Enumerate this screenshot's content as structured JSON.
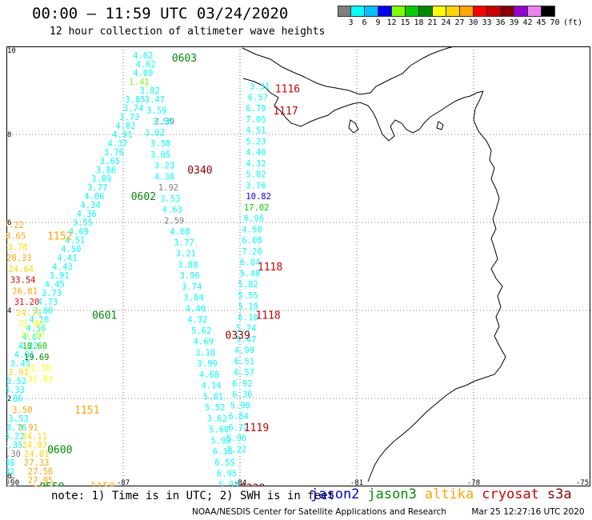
{
  "title": "00:00 – 11:59 UTC 03/24/2020",
  "subtitle": "12 hour collection of altimeter wave heights",
  "color_scale": {
    "unit": "(ft)",
    "labels": [
      "3",
      "6",
      "9",
      "12",
      "15",
      "18",
      "21",
      "24",
      "27",
      "30",
      "33",
      "36",
      "39",
      "42",
      "45",
      "70"
    ],
    "colors": [
      "#7f7f7f",
      "#00ffff",
      "#00bfff",
      "#0000ff",
      "#7fff00",
      "#00cd00",
      "#008b00",
      "#ffff00",
      "#ffd700",
      "#ffa500",
      "#ff0000",
      "#cd0000",
      "#8b0000",
      "#9400d3",
      "#ee82ee",
      "#000000"
    ]
  },
  "map": {
    "lon_range": [
      -90,
      -75
    ],
    "lat_range": [
      0,
      10
    ],
    "x_ticks": [
      "-90",
      "-87",
      "-84",
      "-81",
      "-78",
      "-75"
    ],
    "y_ticks": [
      "10",
      "8",
      "6",
      "4",
      "2",
      "0"
    ]
  },
  "satellites": [
    {
      "name": "jason2",
      "color": "#0000cd"
    },
    {
      "name": "jason3",
      "color": "#008b00"
    },
    {
      "name": "altika",
      "color": "#ffa500"
    },
    {
      "name": "cryosat",
      "color": "#cd0000"
    },
    {
      "name": "s3a",
      "color": "#8b0000"
    }
  ],
  "time_labels": [
    {
      "text": "0603",
      "color": "#008b00",
      "lon": -85.75,
      "lat": 9.75
    },
    {
      "text": "0602",
      "color": "#008b00",
      "lon": -86.8,
      "lat": 6.6
    },
    {
      "text": "0601",
      "color": "#008b00",
      "lon": -87.8,
      "lat": 3.9
    },
    {
      "text": "0600",
      "color": "#008b00",
      "lon": -88.95,
      "lat": 0.85
    },
    {
      "text": "0559",
      "color": "#008b00",
      "lon": -89.15,
      "lat": 0.0
    },
    {
      "text": "1152",
      "color": "#ffa500",
      "lon": -88.95,
      "lat": 5.7
    },
    {
      "text": "1151",
      "color": "#ffa500",
      "lon": -88.25,
      "lat": 1.75
    },
    {
      "text": "1150",
      "color": "#ffa500",
      "lon": -87.85,
      "lat": 0.0
    },
    {
      "text": "0340",
      "color": "#8b0000",
      "lon": -85.35,
      "lat": 7.2
    },
    {
      "text": "0339",
      "color": "#8b0000",
      "lon": -84.38,
      "lat": 3.45
    },
    {
      "text": "0338",
      "color": "#8b0000",
      "lon": -84.0,
      "lat": -0.03
    },
    {
      "text": "1116",
      "color": "#cd0000",
      "lon": -83.1,
      "lat": 9.05
    },
    {
      "text": "1117",
      "color": "#cd0000",
      "lon": -83.15,
      "lat": 8.55
    },
    {
      "text": "1118",
      "color": "#cd0000",
      "lon": -83.55,
      "lat": 5.0
    },
    {
      "text": "1118",
      "color": "#cd0000",
      "lon": -83.6,
      "lat": 3.9
    },
    {
      "text": "1119",
      "color": "#cd0000",
      "lon": -83.9,
      "lat": 1.35
    }
  ],
  "observations": [
    {
      "text": "4.62",
      "color": "#00ffff",
      "lon": -86.75,
      "lat": 9.8
    },
    {
      "text": "4.62",
      "color": "#00ffff",
      "lon": -86.68,
      "lat": 9.6
    },
    {
      "text": "4.09",
      "color": "#00ffff",
      "lon": -86.75,
      "lat": 9.4
    },
    {
      "text": "1.41",
      "color": "#7fff00",
      "lon": -86.85,
      "lat": 9.2
    },
    {
      "text": "3.82",
      "color": "#00ffff",
      "lon": -86.58,
      "lat": 9.0
    },
    {
      "text": "3.85",
      "color": "#00ffff",
      "lon": -86.95,
      "lat": 8.8
    },
    {
      "text": "3.74",
      "color": "#00ffff",
      "lon": -87.0,
      "lat": 8.6
    },
    {
      "text": "3.73",
      "color": "#00ffff",
      "lon": -87.1,
      "lat": 8.4
    },
    {
      "text": "4.02",
      "color": "#00ffff",
      "lon": -87.2,
      "lat": 8.2
    },
    {
      "text": "4.91",
      "color": "#00ffff",
      "lon": -87.28,
      "lat": 8.0
    },
    {
      "text": "4.37",
      "color": "#00ffff",
      "lon": -87.4,
      "lat": 7.8
    },
    {
      "text": "3.76",
      "color": "#00ffff",
      "lon": -87.5,
      "lat": 7.6
    },
    {
      "text": "3.65",
      "color": "#00ffff",
      "lon": -87.6,
      "lat": 7.4
    },
    {
      "text": "3.86",
      "color": "#00ffff",
      "lon": -87.7,
      "lat": 7.2
    },
    {
      "text": "3.89",
      "color": "#00ffff",
      "lon": -87.82,
      "lat": 7.0
    },
    {
      "text": "3.77",
      "color": "#00ffff",
      "lon": -87.92,
      "lat": 6.8
    },
    {
      "text": "4.06",
      "color": "#00ffff",
      "lon": -88.0,
      "lat": 6.6
    },
    {
      "text": "4.34",
      "color": "#00ffff",
      "lon": -88.1,
      "lat": 6.4
    },
    {
      "text": "4.36",
      "color": "#00ffff",
      "lon": -88.2,
      "lat": 6.2
    },
    {
      "text": "3.55",
      "color": "#00ffff",
      "lon": -88.3,
      "lat": 6.0
    },
    {
      "text": "4.69",
      "color": "#00ffff",
      "lon": -88.4,
      "lat": 5.8
    },
    {
      "text": "4.51",
      "color": "#00ffff",
      "lon": -88.5,
      "lat": 5.6
    },
    {
      "text": "4.50",
      "color": "#00ffff",
      "lon": -88.6,
      "lat": 5.4
    },
    {
      "text": "4.41",
      "color": "#00ffff",
      "lon": -88.7,
      "lat": 5.2
    },
    {
      "text": "4.43",
      "color": "#00ffff",
      "lon": -88.82,
      "lat": 5.0
    },
    {
      "text": "3.91",
      "color": "#00ffff",
      "lon": -88.9,
      "lat": 4.8
    },
    {
      "text": "4.45",
      "color": "#00ffff",
      "lon": -89.02,
      "lat": 4.6
    },
    {
      "text": "3.73",
      "color": "#00ffff",
      "lon": -89.1,
      "lat": 4.4
    },
    {
      "text": "4.73",
      "color": "#00ffff",
      "lon": -89.2,
      "lat": 4.2
    },
    {
      "text": "3.80",
      "color": "#00ffff",
      "lon": -89.32,
      "lat": 4.0
    },
    {
      "text": "4.16",
      "color": "#00ffff",
      "lon": -89.42,
      "lat": 3.8
    },
    {
      "text": "4.56",
      "color": "#00ffff",
      "lon": -89.5,
      "lat": 3.6
    },
    {
      "text": "4.07",
      "color": "#00ffff",
      "lon": -89.6,
      "lat": 3.4
    },
    {
      "text": "4.22",
      "color": "#00ffff",
      "lon": -89.7,
      "lat": 3.2
    },
    {
      "text": "4.01",
      "color": "#00ffff",
      "lon": -89.8,
      "lat": 3.0
    },
    {
      "text": "3.45",
      "color": "#00ffff",
      "lon": -89.9,
      "lat": 2.8
    },
    {
      "text": "2.91",
      "color": "#ffd700",
      "lon": -89.95,
      "lat": 2.6
    },
    {
      "text": "3.52",
      "color": "#00ffff",
      "lon": -90.0,
      "lat": 2.4
    },
    {
      "text": "4.33",
      "color": "#00ffff",
      "lon": -90.05,
      "lat": 2.2
    },
    {
      "text": "3.86",
      "color": "#00ffff",
      "lon": -90.1,
      "lat": 2.0
    },
    {
      "text": "3.50",
      "color": "#ffa500",
      "lon": -89.85,
      "lat": 1.75
    },
    {
      "text": "3.53",
      "color": "#00ffff",
      "lon": -89.95,
      "lat": 1.55
    },
    {
      "text": "3.76",
      "color": "#00ffff",
      "lon": -90.0,
      "lat": 1.35
    },
    {
      "text": "3.91",
      "color": "#ffa500",
      "lon": -89.7,
      "lat": 1.35
    },
    {
      "text": "4.22",
      "color": "#00ffff",
      "lon": -90.05,
      "lat": 1.15
    },
    {
      "text": "24.11",
      "color": "#ffd700",
      "lon": -89.6,
      "lat": 1.15
    },
    {
      "text": "3.35",
      "color": "#00ffff",
      "lon": -90.1,
      "lat": 0.95
    },
    {
      "text": "24.07",
      "color": "#ffd700",
      "lon": -89.6,
      "lat": 0.95
    },
    {
      "text": "2.30",
      "color": "#7f7f7f",
      "lon": -90.15,
      "lat": 0.75
    },
    {
      "text": "24.01",
      "color": "#ffd700",
      "lon": -89.55,
      "lat": 0.75
    },
    {
      "text": "3.88",
      "color": "#00ffff",
      "lon": -90.3,
      "lat": 0.55
    },
    {
      "text": "27.33",
      "color": "#ffa500",
      "lon": -89.55,
      "lat": 0.55
    },
    {
      "text": "3.32",
      "color": "#00ffff",
      "lon": -90.3,
      "lat": 0.35
    },
    {
      "text": "27.56",
      "color": "#ffa500",
      "lon": -89.45,
      "lat": 0.35
    },
    {
      "text": "2.58",
      "color": "#7f7f7f",
      "lon": -90.3,
      "lat": 0.15
    },
    {
      "text": "27.95",
      "color": "#ffa500",
      "lon": -89.45,
      "lat": 0.15
    },
    {
      "text": "2.56",
      "color": "#7f7f7f",
      "lon": -90.25,
      "lat": -0.05
    },
    {
      "text": "28.39",
      "color": "#ffa500",
      "lon": -89.3,
      "lat": -0.05
    },
    {
      "text": "27.22",
      "color": "#ffa500",
      "lon": -90.2,
      "lat": 5.95
    },
    {
      "text": "28.65",
      "color": "#ffa500",
      "lon": -90.15,
      "lat": 5.7
    },
    {
      "text": "23.78",
      "color": "#ffd700",
      "lon": -90.1,
      "lat": 5.45
    },
    {
      "text": "28.33",
      "color": "#ffa500",
      "lon": -90.0,
      "lat": 5.2
    },
    {
      "text": "24.64",
      "color": "#ffd700",
      "lon": -89.95,
      "lat": 4.95
    },
    {
      "text": "33.54",
      "color": "#cd0000",
      "lon": -89.9,
      "lat": 4.7
    },
    {
      "text": "26.81",
      "color": "#ffa500",
      "lon": -89.85,
      "lat": 4.45
    },
    {
      "text": "31.20",
      "color": "#ff0000",
      "lon": -89.8,
      "lat": 4.2
    },
    {
      "text": "24.77",
      "color": "#ffd700",
      "lon": -89.75,
      "lat": 3.95
    },
    {
      "text": "21.08",
      "color": "#ffff00",
      "lon": -89.7,
      "lat": 3.7
    },
    {
      "text": "21.07",
      "color": "#ffff00",
      "lon": -89.65,
      "lat": 3.45
    },
    {
      "text": "18.60",
      "color": "#00cd00",
      "lon": -89.6,
      "lat": 3.2
    },
    {
      "text": "19.69",
      "color": "#008b00",
      "lon": -89.55,
      "lat": 2.95
    },
    {
      "text": "21.58",
      "color": "#ffff00",
      "lon": -89.5,
      "lat": 2.7
    },
    {
      "text": "21.83",
      "color": "#ffff00",
      "lon": -89.45,
      "lat": 2.45
    },
    {
      "text": "2.39",
      "color": "#7f7f7f",
      "lon": -86.2,
      "lat": 8.3
    },
    {
      "text": "3.58",
      "color": "#00ffff",
      "lon": -86.25,
      "lat": 8.3
    },
    {
      "text": "3.59",
      "color": "#00ffff",
      "lon": -86.4,
      "lat": 8.55
    },
    {
      "text": "3.47",
      "color": "#00ffff",
      "lon": -86.45,
      "lat": 8.8
    },
    {
      "text": "3.02",
      "color": "#00ffff",
      "lon": -86.45,
      "lat": 8.05
    },
    {
      "text": "3.58",
      "color": "#00ffff",
      "lon": -86.3,
      "lat": 7.8
    },
    {
      "text": "3.05",
      "color": "#00ffff",
      "lon": -86.3,
      "lat": 7.55
    },
    {
      "text": "3.23",
      "color": "#00ffff",
      "lon": -86.2,
      "lat": 7.3
    },
    {
      "text": "4.38",
      "color": "#00ffff",
      "lon": -86.2,
      "lat": 7.05
    },
    {
      "text": "1.92",
      "color": "#7f7f7f",
      "lon": -86.1,
      "lat": 6.8
    },
    {
      "text": "3.53",
      "color": "#00ffff",
      "lon": -86.05,
      "lat": 6.55
    },
    {
      "text": "4.63",
      "color": "#00ffff",
      "lon": -86.0,
      "lat": 6.3
    },
    {
      "text": "2.59",
      "color": "#7f7f7f",
      "lon": -85.95,
      "lat": 6.05
    },
    {
      "text": "4.68",
      "color": "#00ffff",
      "lon": -85.8,
      "lat": 5.8
    },
    {
      "text": "3.77",
      "color": "#00ffff",
      "lon": -85.7,
      "lat": 5.55
    },
    {
      "text": "3.21",
      "color": "#00ffff",
      "lon": -85.65,
      "lat": 5.3
    },
    {
      "text": "3.88",
      "color": "#00ffff",
      "lon": -85.6,
      "lat": 5.05
    },
    {
      "text": "3.96",
      "color": "#00ffff",
      "lon": -85.55,
      "lat": 4.8
    },
    {
      "text": "3.74",
      "color": "#00ffff",
      "lon": -85.5,
      "lat": 4.55
    },
    {
      "text": "3.84",
      "color": "#00ffff",
      "lon": -85.45,
      "lat": 4.3
    },
    {
      "text": "4.40",
      "color": "#00ffff",
      "lon": -85.4,
      "lat": 4.05
    },
    {
      "text": "4.32",
      "color": "#00ffff",
      "lon": -85.35,
      "lat": 3.8
    },
    {
      "text": "5.62",
      "color": "#00ffff",
      "lon": -85.25,
      "lat": 3.55
    },
    {
      "text": "4.69",
      "color": "#00ffff",
      "lon": -85.2,
      "lat": 3.3
    },
    {
      "text": "3.18",
      "color": "#00ffff",
      "lon": -85.15,
      "lat": 3.05
    },
    {
      "text": "3.99",
      "color": "#00ffff",
      "lon": -85.1,
      "lat": 2.8
    },
    {
      "text": "4.68",
      "color": "#00ffff",
      "lon": -85.05,
      "lat": 2.55
    },
    {
      "text": "4.14",
      "color": "#00ffff",
      "lon": -85.0,
      "lat": 2.3
    },
    {
      "text": "5.81",
      "color": "#00ffff",
      "lon": -84.95,
      "lat": 2.05
    },
    {
      "text": "5.52",
      "color": "#00ffff",
      "lon": -84.9,
      "lat": 1.8
    },
    {
      "text": "3.62",
      "color": "#00ffff",
      "lon": -84.85,
      "lat": 1.55
    },
    {
      "text": "5.60",
      "color": "#00ffff",
      "lon": -84.8,
      "lat": 1.3
    },
    {
      "text": "5.98",
      "color": "#00ffff",
      "lon": -84.75,
      "lat": 1.05
    },
    {
      "text": "6.36",
      "color": "#00ffff",
      "lon": -84.7,
      "lat": 0.8
    },
    {
      "text": "6.55",
      "color": "#00ffff",
      "lon": -84.65,
      "lat": 0.55
    },
    {
      "text": "6.95",
      "color": "#00ffff",
      "lon": -84.6,
      "lat": 0.3
    },
    {
      "text": "5.93",
      "color": "#00ffff",
      "lon": -84.55,
      "lat": 0.05
    },
    {
      "text": "5.62",
      "color": "#00ffff",
      "lon": -84.5,
      "lat": -0.2
    },
    {
      "text": "3.31",
      "color": "#00ffff",
      "lon": -83.75,
      "lat": 9.1
    },
    {
      "text": "6.57",
      "color": "#00ffff",
      "lon": -83.8,
      "lat": 8.85
    },
    {
      "text": "6.79",
      "color": "#00ffff",
      "lon": -83.85,
      "lat": 8.6
    },
    {
      "text": "7.05",
      "color": "#00ffff",
      "lon": -83.85,
      "lat": 8.35
    },
    {
      "text": "4.51",
      "color": "#00ffff",
      "lon": -83.85,
      "lat": 8.1
    },
    {
      "text": "5.23",
      "color": "#00ffff",
      "lon": -83.85,
      "lat": 7.85
    },
    {
      "text": "4.40",
      "color": "#00ffff",
      "lon": -83.85,
      "lat": 7.6
    },
    {
      "text": "4.32",
      "color": "#00ffff",
      "lon": -83.85,
      "lat": 7.35
    },
    {
      "text": "5.02",
      "color": "#00ffff",
      "lon": -83.85,
      "lat": 7.1
    },
    {
      "text": "3.76",
      "color": "#00ffff",
      "lon": -83.85,
      "lat": 6.85
    },
    {
      "text": "10.82",
      "color": "#0000ff",
      "lon": -83.85,
      "lat": 6.6
    },
    {
      "text": "17.02",
      "color": "#00cd00",
      "lon": -83.9,
      "lat": 6.35
    },
    {
      "text": "6.96",
      "color": "#00ffff",
      "lon": -83.9,
      "lat": 6.1
    },
    {
      "text": "4.50",
      "color": "#00ffff",
      "lon": -83.95,
      "lat": 5.85
    },
    {
      "text": "6.08",
      "color": "#00ffff",
      "lon": -83.95,
      "lat": 5.6
    },
    {
      "text": "7.20",
      "color": "#00ffff",
      "lon": -83.95,
      "lat": 5.35
    },
    {
      "text": "6.84",
      "color": "#00ffff",
      "lon": -84.0,
      "lat": 5.1
    },
    {
      "text": "5.48",
      "color": "#00ffff",
      "lon": -84.0,
      "lat": 4.85
    },
    {
      "text": "5.82",
      "color": "#00ffff",
      "lon": -84.05,
      "lat": 4.6
    },
    {
      "text": "5.55",
      "color": "#00ffff",
      "lon": -84.05,
      "lat": 4.35
    },
    {
      "text": "5.19",
      "color": "#00ffff",
      "lon": -84.05,
      "lat": 4.1
    },
    {
      "text": "6.18",
      "color": "#00ffff",
      "lon": -84.05,
      "lat": 3.85
    },
    {
      "text": "5.74",
      "color": "#00ffff",
      "lon": -84.1,
      "lat": 3.6
    },
    {
      "text": "5.47",
      "color": "#00ffff",
      "lon": -84.1,
      "lat": 3.35
    },
    {
      "text": "4.99",
      "color": "#00ffff",
      "lon": -84.15,
      "lat": 3.1
    },
    {
      "text": "6.51",
      "color": "#00ffff",
      "lon": -84.15,
      "lat": 2.85
    },
    {
      "text": "6.57",
      "color": "#00ffff",
      "lon": -84.15,
      "lat": 2.6
    },
    {
      "text": "6.92",
      "color": "#00ffff",
      "lon": -84.2,
      "lat": 2.35
    },
    {
      "text": "6.36",
      "color": "#00ffff",
      "lon": -84.2,
      "lat": 2.1
    },
    {
      "text": "5.90",
      "color": "#00ffff",
      "lon": -84.25,
      "lat": 1.85
    },
    {
      "text": "6.84",
      "color": "#00ffff",
      "lon": -84.3,
      "lat": 1.6
    },
    {
      "text": "6.72",
      "color": "#00ffff",
      "lon": -84.3,
      "lat": 1.35
    },
    {
      "text": "5.96",
      "color": "#00ffff",
      "lon": -84.35,
      "lat": 1.1
    },
    {
      "text": "7.22",
      "color": "#00ffff",
      "lon": -84.35,
      "lat": 0.85
    }
  ],
  "note": "note: 1) Time is in UTC; 2) SWH is in feet",
  "footer": {
    "center": "NOAA/NESDIS Center for Satellite Applications and Research",
    "timestamp": "Mar 25 12:27:16 UTC 2020"
  }
}
